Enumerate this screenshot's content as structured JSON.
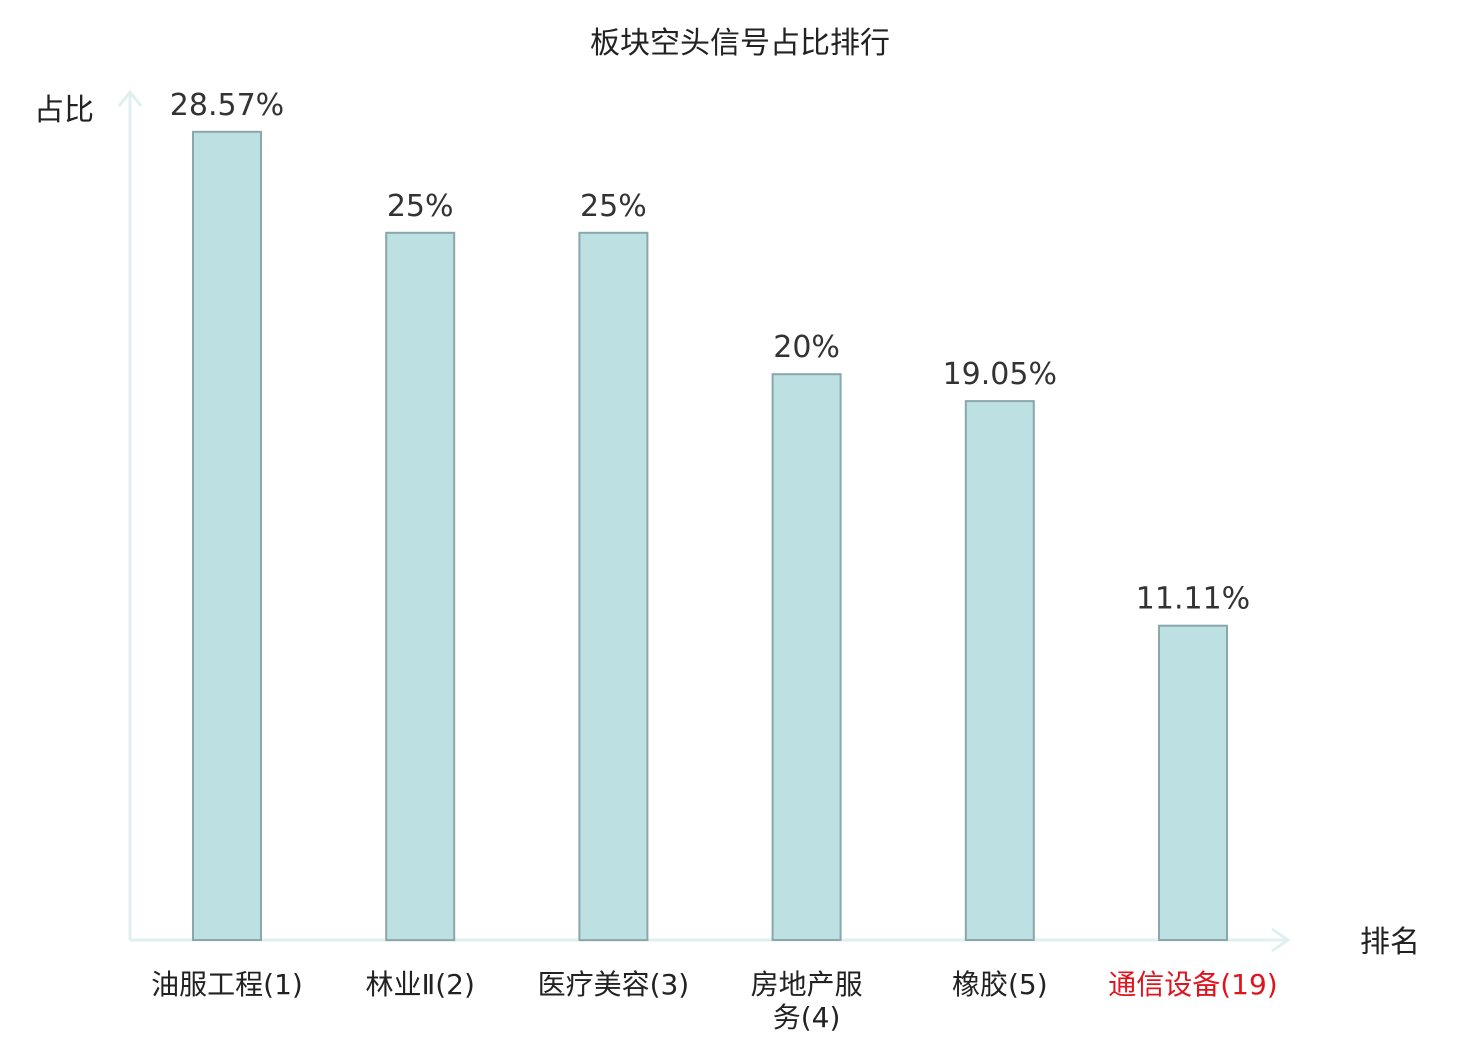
{
  "chart_data": {
    "type": "bar",
    "title": "板块空头信号占比排行",
    "ylabel": "占比",
    "xlabel": "排名",
    "ylim": [
      0,
      30
    ],
    "grid": false,
    "categories": [
      {
        "lines": [
          "油服工程(1)"
        ],
        "highlight": false
      },
      {
        "lines": [
          "林业Ⅱ(2)"
        ],
        "highlight": false
      },
      {
        "lines": [
          "医疗美容(3)"
        ],
        "highlight": false
      },
      {
        "lines": [
          "房地产服",
          "务(4)"
        ],
        "highlight": false
      },
      {
        "lines": [
          "橡胶(5)"
        ],
        "highlight": false
      },
      {
        "lines": [
          "通信设备(19)"
        ],
        "highlight": true
      }
    ],
    "values": [
      28.57,
      25,
      25,
      20,
      19.05,
      11.11
    ],
    "value_labels": [
      "28.57%",
      "25%",
      "25%",
      "20%",
      "19.05%",
      "11.11%"
    ],
    "colors": {
      "bar_fill": "#bde0e3",
      "bar_stroke": "#8aa7aa",
      "axis": "#dff0ee",
      "highlight_text": "#e0141e"
    }
  }
}
